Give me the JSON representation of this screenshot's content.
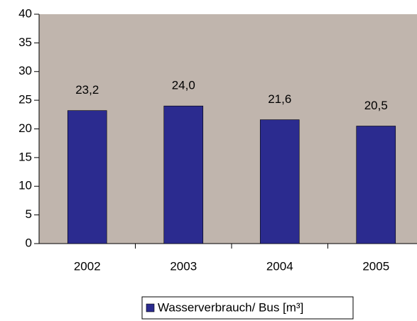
{
  "chart_data": {
    "type": "bar",
    "categories": [
      "2002",
      "2003",
      "2004",
      "2005"
    ],
    "series": [
      {
        "name": "Wasserverbrauch/ Bus [m³]",
        "color": "#2b2b8f",
        "values": [
          23.2,
          24.0,
          21.6,
          20.5
        ],
        "value_labels": [
          "23,2",
          "24,0",
          "21,6",
          "20,5"
        ]
      }
    ],
    "ylim": [
      0,
      40
    ],
    "yticks": [
      0,
      5,
      10,
      15,
      20,
      25,
      30,
      35,
      40
    ],
    "plot_background": "#c0b5ad",
    "legend": "bottom"
  }
}
